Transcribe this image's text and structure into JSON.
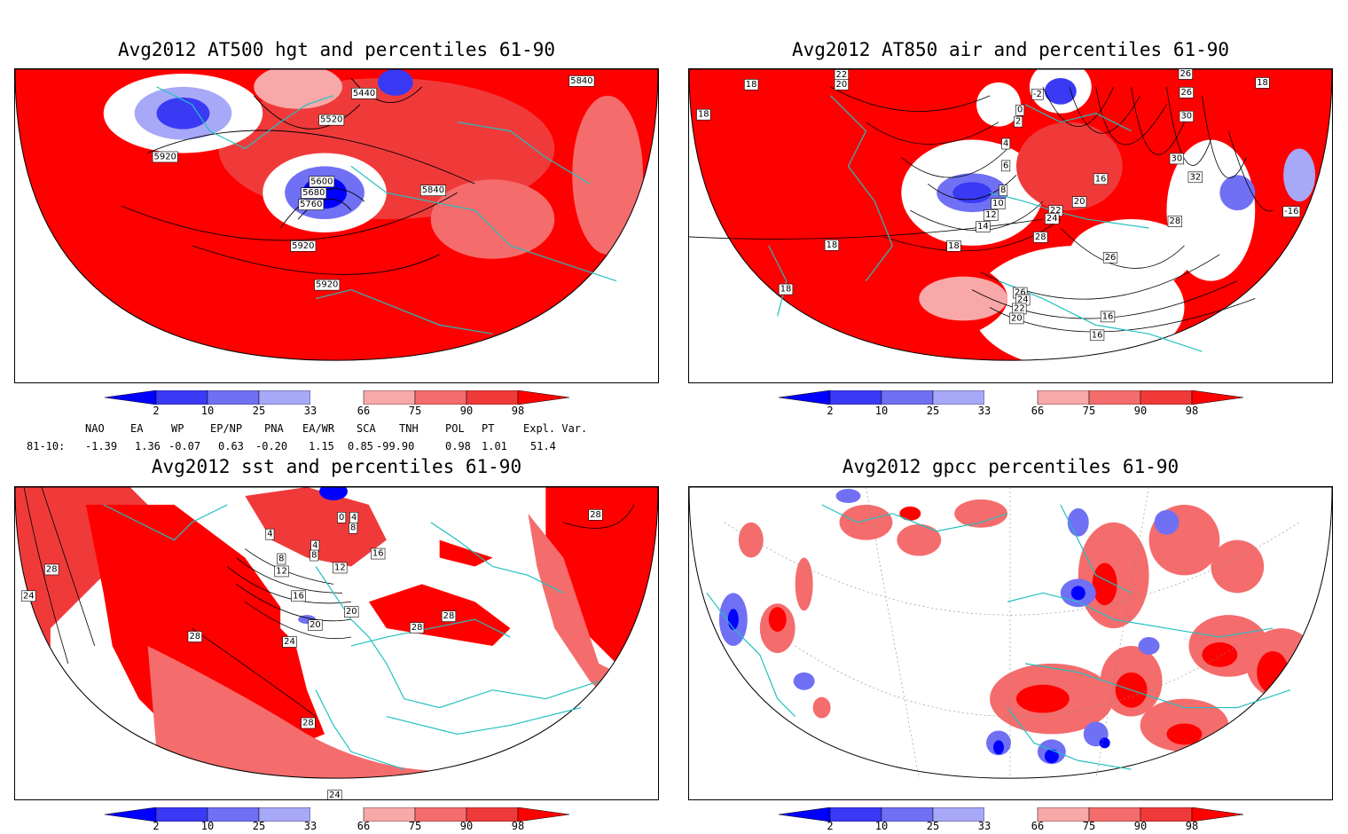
{
  "panels": [
    {
      "id": "at500",
      "title": "Avg2012 AT500 hgt and percentiles 61-90",
      "contour_labels": [
        "5440",
        "5520",
        "5840",
        "5920",
        "5600",
        "5680",
        "5760",
        "5840",
        "5920",
        "5920"
      ]
    },
    {
      "id": "at850",
      "title": "Avg2012 AT850 air and percentiles 61-90",
      "contour_labels": [
        "18",
        "22",
        "20",
        "-2",
        "26",
        "26",
        "18",
        "18",
        "0",
        "2",
        "30",
        "4",
        "6",
        "30",
        "8",
        "16",
        "32",
        "10",
        "20",
        "22",
        "24",
        "12",
        "14",
        "28",
        "-16",
        "18",
        "18",
        "28",
        "26",
        "18",
        "26",
        "24",
        "22",
        "20",
        "16",
        "16"
      ]
    },
    {
      "id": "sst",
      "title": "Avg2012 sst and percentiles 61-90",
      "contour_labels": [
        "28",
        "24",
        "28",
        "0",
        "4",
        "8",
        "4",
        "4",
        "8",
        "8",
        "12",
        "12",
        "16",
        "16",
        "20",
        "24",
        "20",
        "28",
        "28",
        "28",
        "28",
        "24"
      ]
    },
    {
      "id": "gpcc",
      "title": "Avg2012 gpcc percentiles 61-90",
      "contour_labels": []
    }
  ],
  "colorbar": {
    "labels": [
      "2",
      "10",
      "25",
      "33",
      "66",
      "75",
      "90",
      "98"
    ],
    "colors": {
      "deep_blue": "#0000ff",
      "blue": "#3a3af5",
      "mid_blue": "#7070f5",
      "light_blue": "#a8a8f8",
      "white": "#ffffff",
      "light_red": "#f8a8a8",
      "mid_red": "#f46c6c",
      "red": "#f03a3a",
      "deep_red": "#ff0000"
    }
  },
  "indices": {
    "headers": [
      "NAO",
      "EA",
      "WP",
      "EP/NP",
      "PNA",
      "EA/WR",
      "SCA",
      "TNH",
      "POL",
      "PT",
      "Expl. Var."
    ],
    "row_label": "81-10:",
    "values": [
      "-1.39",
      "1.36",
      "-0.07",
      "0.63",
      "-0.20",
      "1.15",
      "0.85",
      "-99.90",
      "0.98",
      "1.01",
      "51.4"
    ]
  },
  "map_colors": {
    "coast": "#22c0c0",
    "contour": "#000000",
    "grid": "#888888"
  }
}
